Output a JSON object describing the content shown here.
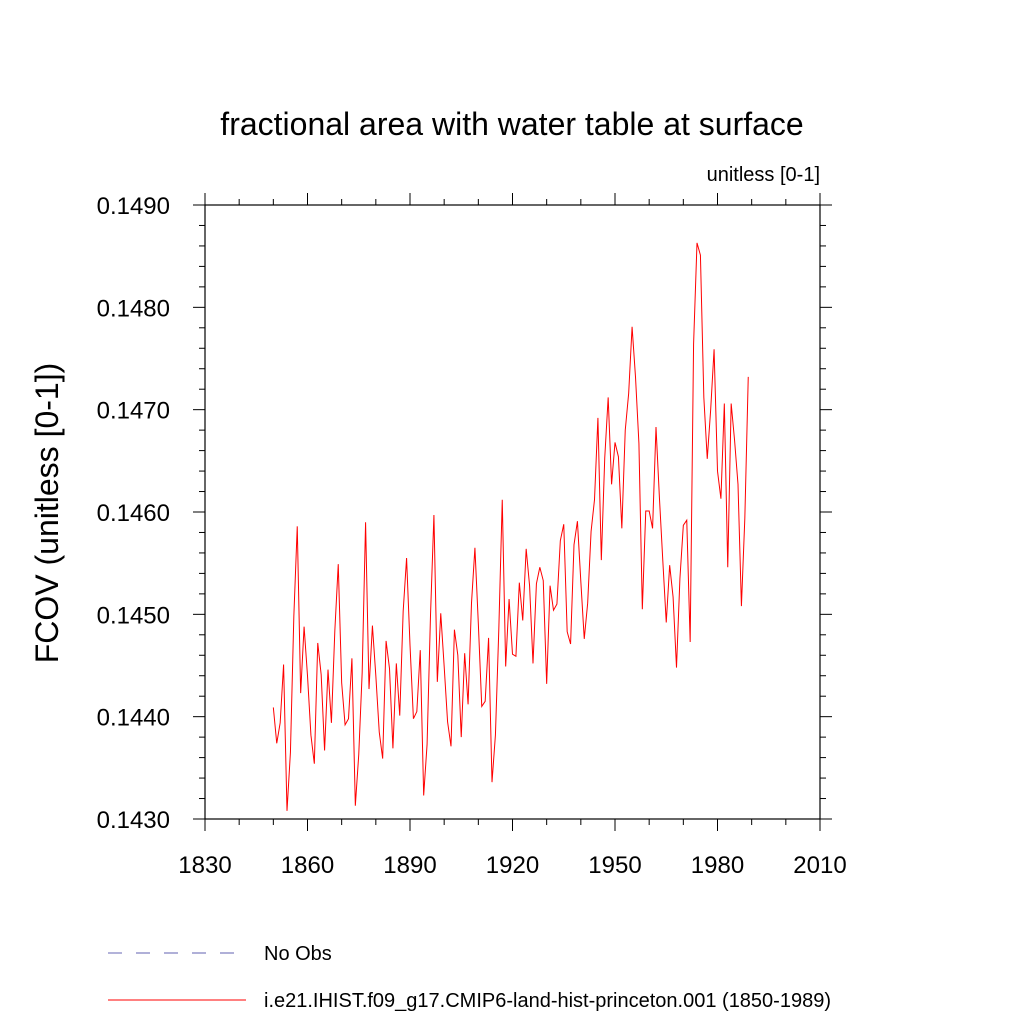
{
  "chart_data": {
    "type": "line",
    "title": "fractional area with water table at surface",
    "units_label": "unitless [0-1]",
    "ylabel": "FCOV  (unitless [0-1])",
    "xlabel": "",
    "xlim": [
      1830,
      2010
    ],
    "ylim": [
      0.143,
      0.149
    ],
    "x_ticks": [
      "1830",
      "1860",
      "1890",
      "1920",
      "1950",
      "1980",
      "2010"
    ],
    "y_ticks": [
      "0.1430",
      "0.1440",
      "0.1450",
      "0.1460",
      "0.1470",
      "0.1480",
      "0.1490"
    ],
    "grid": false,
    "colors": {
      "model": "#ff0000",
      "obs": "#8080c0"
    },
    "series": [
      {
        "name": "i.e21.IHIST.f09_g17.CMIP6-land-hist-princeton.001 (1850-1989)",
        "x": [
          1850,
          1851,
          1852,
          1853,
          1854,
          1855,
          1856,
          1857,
          1858,
          1859,
          1860,
          1861,
          1862,
          1863,
          1864,
          1865,
          1866,
          1867,
          1868,
          1869,
          1870,
          1871,
          1872,
          1873,
          1874,
          1875,
          1876,
          1877,
          1878,
          1879,
          1880,
          1881,
          1882,
          1883,
          1884,
          1885,
          1886,
          1887,
          1888,
          1889,
          1890,
          1891,
          1892,
          1893,
          1894,
          1895,
          1896,
          1897,
          1898,
          1899,
          1900,
          1901,
          1902,
          1903,
          1904,
          1905,
          1906,
          1907,
          1908,
          1909,
          1910,
          1911,
          1912,
          1913,
          1914,
          1915,
          1916,
          1917,
          1918,
          1919,
          1920,
          1921,
          1922,
          1923,
          1924,
          1925,
          1926,
          1927,
          1928,
          1929,
          1930,
          1931,
          1932,
          1933,
          1934,
          1935,
          1936,
          1937,
          1938,
          1939,
          1940,
          1941,
          1942,
          1943,
          1944,
          1945,
          1946,
          1947,
          1948,
          1949,
          1950,
          1951,
          1952,
          1953,
          1954,
          1955,
          1956,
          1957,
          1958,
          1959,
          1960,
          1961,
          1962,
          1963,
          1964,
          1965,
          1966,
          1967,
          1968,
          1969,
          1970,
          1971,
          1972,
          1973,
          1974,
          1975,
          1976,
          1977,
          1978,
          1979,
          1980,
          1981,
          1982,
          1983,
          1984,
          1985,
          1986,
          1987,
          1988,
          1989
        ],
        "values": [
          0.14409,
          0.14374,
          0.14394,
          0.14451,
          0.14308,
          0.14365,
          0.14498,
          0.14586,
          0.14423,
          0.14488,
          0.1444,
          0.14382,
          0.14354,
          0.14472,
          0.14441,
          0.14367,
          0.14446,
          0.14394,
          0.14484,
          0.14549,
          0.14433,
          0.14392,
          0.14398,
          0.14457,
          0.14313,
          0.14363,
          0.14443,
          0.1459,
          0.14427,
          0.14489,
          0.1444,
          0.14385,
          0.14359,
          0.14474,
          0.14447,
          0.14369,
          0.14452,
          0.14401,
          0.14503,
          0.14555,
          0.1447,
          0.14398,
          0.14405,
          0.14465,
          0.14323,
          0.14373,
          0.14499,
          0.14597,
          0.14434,
          0.14501,
          0.14449,
          0.14395,
          0.14371,
          0.14485,
          0.1446,
          0.1438,
          0.14462,
          0.14412,
          0.14511,
          0.14565,
          0.14491,
          0.1441,
          0.14415,
          0.14477,
          0.14336,
          0.14382,
          0.14486,
          0.14612,
          0.14449,
          0.14515,
          0.14461,
          0.14459,
          0.14531,
          0.14494,
          0.14564,
          0.14528,
          0.14452,
          0.1453,
          0.14546,
          0.14533,
          0.14432,
          0.14528,
          0.14504,
          0.1451,
          0.14572,
          0.14588,
          0.14483,
          0.14471,
          0.14568,
          0.14591,
          0.14532,
          0.14476,
          0.14511,
          0.14581,
          0.14612,
          0.14692,
          0.14553,
          0.14653,
          0.14712,
          0.14627,
          0.14668,
          0.14654,
          0.14584,
          0.1468,
          0.14716,
          0.14781,
          0.14732,
          0.14667,
          0.14505,
          0.14601,
          0.14601,
          0.14584,
          0.14683,
          0.14614,
          0.14552,
          0.14492,
          0.14548,
          0.14517,
          0.14448,
          0.14535,
          0.14587,
          0.14592,
          0.14473,
          0.14764,
          0.14863,
          0.14851,
          0.14712,
          0.14652,
          0.147,
          0.14759,
          0.1464,
          0.14613,
          0.14706,
          0.14546,
          0.14706,
          0.1467,
          0.14627,
          0.14508,
          0.14594,
          0.14732
        ]
      },
      {
        "name": "No Obs",
        "x": [],
        "values": []
      }
    ]
  }
}
